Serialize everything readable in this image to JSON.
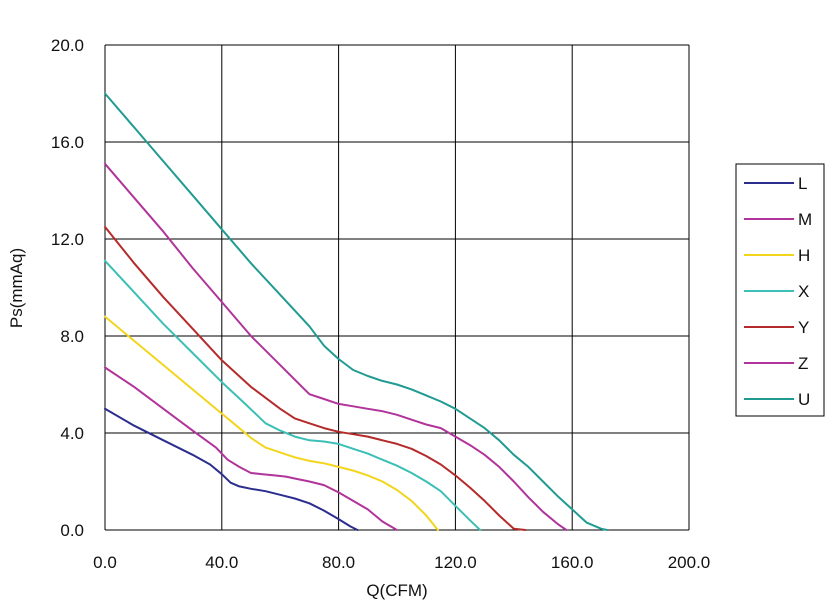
{
  "chart_data": {
    "type": "line",
    "title": "",
    "xlabel": "Q(CFM)",
    "ylabel": "Ps(mmAq)",
    "xlim": [
      0,
      200
    ],
    "ylim": [
      0,
      20
    ],
    "xticks": [
      "0.0",
      "40.0",
      "80.0",
      "120.0",
      "160.0",
      "200.0"
    ],
    "yticks": [
      "0.0",
      "4.0",
      "8.0",
      "12.0",
      "16.0",
      "20.0"
    ],
    "grid": true,
    "legend_position": "right",
    "series": [
      {
        "name": "L",
        "color": "#2b2d8f",
        "x": [
          0,
          10,
          20,
          30,
          36,
          40,
          43,
          46,
          50,
          55,
          60,
          65,
          70,
          75,
          80,
          84,
          86.5
        ],
        "y": [
          5.0,
          4.3,
          3.7,
          3.1,
          2.7,
          2.3,
          1.95,
          1.8,
          1.7,
          1.6,
          1.45,
          1.3,
          1.1,
          0.8,
          0.45,
          0.15,
          0.0
        ]
      },
      {
        "name": "M",
        "color": "#b0349a",
        "x": [
          0,
          10,
          20,
          30,
          38,
          42,
          46,
          50,
          54,
          58,
          62,
          66,
          70,
          75,
          80,
          85,
          90,
          95,
          100
        ],
        "y": [
          6.7,
          5.9,
          5.0,
          4.1,
          3.4,
          2.9,
          2.6,
          2.35,
          2.3,
          2.25,
          2.2,
          2.1,
          2.0,
          1.85,
          1.55,
          1.2,
          0.85,
          0.35,
          0.0
        ]
      },
      {
        "name": "H",
        "color": "#f2d51c",
        "x": [
          0,
          10,
          20,
          30,
          40,
          45,
          50,
          55,
          60,
          65,
          70,
          75,
          80,
          85,
          90,
          95,
          100,
          105,
          110,
          114
        ],
        "y": [
          8.8,
          7.8,
          6.8,
          5.8,
          4.8,
          4.3,
          3.8,
          3.4,
          3.2,
          3.0,
          2.85,
          2.75,
          2.6,
          2.45,
          2.25,
          2.0,
          1.65,
          1.2,
          0.6,
          0.0
        ]
      },
      {
        "name": "X",
        "color": "#3bbfb6",
        "x": [
          0,
          10,
          20,
          30,
          40,
          48,
          55,
          60,
          65,
          70,
          75,
          80,
          85,
          90,
          95,
          100,
          105,
          110,
          115,
          120,
          125,
          128.5
        ],
        "y": [
          11.1,
          9.8,
          8.5,
          7.3,
          6.1,
          5.2,
          4.4,
          4.1,
          3.85,
          3.7,
          3.65,
          3.55,
          3.35,
          3.15,
          2.9,
          2.65,
          2.35,
          2.0,
          1.6,
          1.0,
          0.4,
          0.0
        ]
      },
      {
        "name": "Y",
        "color": "#b52a2a",
        "x": [
          0,
          10,
          20,
          30,
          40,
          50,
          60,
          65,
          70,
          75,
          80,
          85,
          90,
          95,
          100,
          105,
          110,
          115,
          120,
          125,
          130,
          135,
          140,
          144
        ],
        "y": [
          12.5,
          11.0,
          9.6,
          8.3,
          7.0,
          5.9,
          5.0,
          4.6,
          4.4,
          4.2,
          4.05,
          3.95,
          3.85,
          3.7,
          3.55,
          3.35,
          3.05,
          2.7,
          2.25,
          1.75,
          1.2,
          0.6,
          0.05,
          0.0
        ]
      },
      {
        "name": "Z",
        "color": "#b0349a",
        "x": [
          0,
          10,
          20,
          30,
          40,
          50,
          60,
          70,
          75,
          80,
          85,
          90,
          95,
          100,
          105,
          110,
          115,
          120,
          125,
          130,
          135,
          140,
          145,
          150,
          155,
          158
        ],
        "y": [
          15.1,
          13.7,
          12.3,
          10.8,
          9.4,
          8.0,
          6.8,
          5.6,
          5.4,
          5.2,
          5.1,
          5.0,
          4.9,
          4.75,
          4.55,
          4.35,
          4.2,
          3.85,
          3.5,
          3.1,
          2.6,
          2.0,
          1.35,
          0.75,
          0.25,
          0.0
        ]
      },
      {
        "name": "U",
        "color": "#1f9b92",
        "x": [
          0,
          10,
          20,
          30,
          40,
          50,
          60,
          70,
          75,
          80,
          85,
          90,
          95,
          100,
          105,
          110,
          115,
          120,
          125,
          130,
          135,
          140,
          145,
          150,
          155,
          160,
          165,
          170,
          172
        ],
        "y": [
          18.0,
          16.6,
          15.2,
          13.8,
          12.4,
          11.0,
          9.7,
          8.4,
          7.6,
          7.05,
          6.6,
          6.35,
          6.15,
          6.0,
          5.8,
          5.55,
          5.3,
          5.0,
          4.6,
          4.2,
          3.7,
          3.1,
          2.6,
          2.0,
          1.4,
          0.85,
          0.3,
          0.05,
          0.0
        ]
      }
    ]
  }
}
